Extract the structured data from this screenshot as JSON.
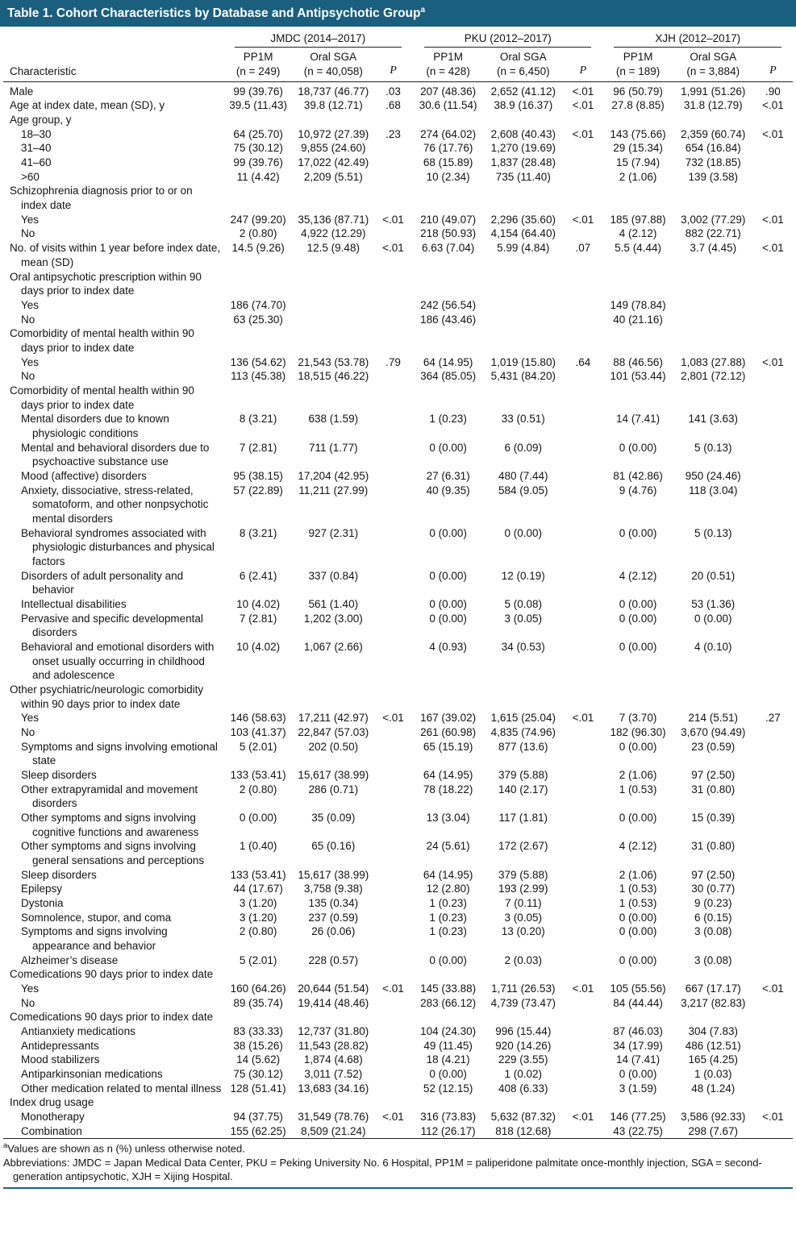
{
  "title": "Table 1. Cohort Characteristics by Database and Antipsychotic Group",
  "title_sup": "a",
  "colors": {
    "accent": "#1a5f7d",
    "rule": "#222222"
  },
  "table": {
    "characteristic_label": "Characteristic",
    "p_label": "P",
    "groups": [
      {
        "name": "JMDC (2014–2017)",
        "pp1m_l1": "PP1M",
        "pp1m_l2": "(n = 249)",
        "sga_l1": "Oral SGA",
        "sga_l2": "(n = 40,058)"
      },
      {
        "name": "PKU (2012–2017)",
        "pp1m_l1": "PP1M",
        "pp1m_l2": "(n = 428)",
        "sga_l1": "Oral SGA",
        "sga_l2": "(n = 6,450)"
      },
      {
        "name": "XJH (2012–2017)",
        "pp1m_l1": "PP1M",
        "pp1m_l2": "(n = 189)",
        "sga_l1": "Oral SGA",
        "sga_l2": "(n = 3,884)"
      }
    ],
    "rows": [
      {
        "t": "d",
        "i": 0,
        "l": "Male",
        "c": [
          "99 (39.76)",
          "18,737 (46.77)",
          ".03",
          "207 (48.36)",
          "2,652 (41.12)",
          "<.01",
          "96 (50.79)",
          "1,991 (51.26)",
          ".90"
        ]
      },
      {
        "t": "d",
        "i": 0,
        "l": "Age at index date, mean (SD), y",
        "c": [
          "39.5 (11.43)",
          "39.8 (12.71)",
          ".68",
          "30.6 (11.54)",
          "38.9 (16.37)",
          "<.01",
          "27.8 (8.85)",
          "31.8 (12.79)",
          "<.01"
        ]
      },
      {
        "t": "s",
        "i": 0,
        "l": "Age group, y"
      },
      {
        "t": "d",
        "i": 1,
        "l": "18–30",
        "c": [
          "64 (25.70)",
          "10,972 (27.39)",
          ".23",
          "274 (64.02)",
          "2,608 (40.43)",
          "<.01",
          "143 (75.66)",
          "2,359 (60.74)",
          "<.01"
        ]
      },
      {
        "t": "d",
        "i": 1,
        "l": "31–40",
        "c": [
          "75 (30.12)",
          "9,855 (24.60)",
          "",
          "76 (17.76)",
          "1,270 (19.69)",
          "",
          "29 (15.34)",
          "654 (16.84)",
          ""
        ]
      },
      {
        "t": "d",
        "i": 1,
        "l": "41–60",
        "c": [
          "99 (39.76)",
          "17,022 (42.49)",
          "",
          "68 (15.89)",
          "1,837 (28.48)",
          "",
          "15 (7.94)",
          "732 (18.85)",
          ""
        ]
      },
      {
        "t": "d",
        "i": 1,
        "l": ">60",
        "c": [
          "11 (4.42)",
          "2,209 (5.51)",
          "",
          "10 (2.34)",
          "735 (11.40)",
          "",
          "2 (1.06)",
          "139 (3.58)",
          ""
        ]
      },
      {
        "t": "s",
        "i": 0,
        "l": "Schizophrenia diagnosis prior to or on index date"
      },
      {
        "t": "d",
        "i": 1,
        "l": "Yes",
        "c": [
          "247 (99.20)",
          "35,136 (87.71)",
          "<.01",
          "210 (49.07)",
          "2,296 (35.60)",
          "<.01",
          "185 (97.88)",
          "3,002 (77.29)",
          "<.01"
        ]
      },
      {
        "t": "d",
        "i": 1,
        "l": "No",
        "c": [
          "2 (0.80)",
          "4,922 (12.29)",
          "",
          "218 (50.93)",
          "4,154 (64.40)",
          "",
          "4 (2.12)",
          "882 (22.71)",
          ""
        ]
      },
      {
        "t": "d",
        "i": 0,
        "l": "No. of visits within 1 year before index date, mean (SD)",
        "c": [
          "14.5 (9.26)",
          "12.5 (9.48)",
          "<.01",
          "6.63 (7.04)",
          "5.99 (4.84)",
          ".07",
          "5.5 (4.44)",
          "3.7 (4.45)",
          "<.01"
        ]
      },
      {
        "t": "s",
        "i": 0,
        "l": "Oral antipsychotic prescription within 90 days prior to index date"
      },
      {
        "t": "d",
        "i": 1,
        "l": "Yes",
        "c": [
          "186 (74.70)",
          "",
          "",
          "242 (56.54)",
          "",
          "",
          "149 (78.84)",
          "",
          ""
        ]
      },
      {
        "t": "d",
        "i": 1,
        "l": "No",
        "c": [
          "63 (25.30)",
          "",
          "",
          "186 (43.46)",
          "",
          "",
          "40 (21.16)",
          "",
          ""
        ]
      },
      {
        "t": "s",
        "i": 0,
        "l": "Comorbidity of mental health within 90 days prior to index date"
      },
      {
        "t": "d",
        "i": 1,
        "l": "Yes",
        "c": [
          "136 (54.62)",
          "21,543 (53.78)",
          ".79",
          "64 (14.95)",
          "1,019 (15.80)",
          ".64",
          "88 (46.56)",
          "1,083 (27.88)",
          "<.01"
        ]
      },
      {
        "t": "d",
        "i": 1,
        "l": "No",
        "c": [
          "113 (45.38)",
          "18,515 (46.22)",
          "",
          "364 (85.05)",
          "5,431 (84.20)",
          "",
          "101 (53.44)",
          "2,801 (72.12)",
          ""
        ]
      },
      {
        "t": "s",
        "i": 0,
        "l": "Comorbidity of mental health within 90 days prior to index date"
      },
      {
        "t": "d",
        "i": 1,
        "l": "Mental disorders due to known physiologic conditions",
        "c": [
          "8 (3.21)",
          "638 (1.59)",
          "",
          "1 (0.23)",
          "33 (0.51)",
          "",
          "14 (7.41)",
          "141 (3.63)",
          ""
        ]
      },
      {
        "t": "d",
        "i": 1,
        "l": "Mental and behavioral disorders due to psychoactive substance use",
        "c": [
          "7 (2.81)",
          "711 (1.77)",
          "",
          "0 (0.00)",
          "6 (0.09)",
          "",
          "0 (0.00)",
          "5 (0.13)",
          ""
        ]
      },
      {
        "t": "d",
        "i": 1,
        "l": "Mood (affective) disorders",
        "c": [
          "95 (38.15)",
          "17,204 (42.95)",
          "",
          "27 (6.31)",
          "480 (7.44)",
          "",
          "81 (42.86)",
          "950 (24.46)",
          ""
        ]
      },
      {
        "t": "d",
        "i": 1,
        "l": "Anxiety, dissociative, stress-related, somatoform, and other nonpsychotic mental disorders",
        "c": [
          "57 (22.89)",
          "11,211 (27.99)",
          "",
          "40 (9.35)",
          "584 (9.05)",
          "",
          "9 (4.76)",
          "118 (3.04)",
          ""
        ]
      },
      {
        "t": "d",
        "i": 1,
        "l": "Behavioral syndromes associated with physiologic disturbances and physical factors",
        "c": [
          "8 (3.21)",
          "927 (2.31)",
          "",
          "0 (0.00)",
          "0 (0.00)",
          "",
          "0 (0.00)",
          "5 (0.13)",
          ""
        ]
      },
      {
        "t": "d",
        "i": 1,
        "l": "Disorders of adult personality and behavior",
        "c": [
          "6 (2.41)",
          "337 (0.84)",
          "",
          "0 (0.00)",
          "12 (0.19)",
          "",
          "4 (2.12)",
          "20 (0.51)",
          ""
        ]
      },
      {
        "t": "d",
        "i": 1,
        "l": "Intellectual disabilities",
        "c": [
          "10 (4.02)",
          "561 (1.40)",
          "",
          "0 (0.00)",
          "5 (0.08)",
          "",
          "0 (0.00)",
          "53 (1.36)",
          ""
        ]
      },
      {
        "t": "d",
        "i": 1,
        "l": "Pervasive and specific developmental disorders",
        "c": [
          "7 (2.81)",
          "1,202 (3.00)",
          "",
          "0 (0.00)",
          "3 (0.05)",
          "",
          "0 (0.00)",
          "0 (0.00)",
          ""
        ]
      },
      {
        "t": "d",
        "i": 1,
        "l": "Behavioral and emotional disorders with onset usually occurring in childhood and adolescence",
        "c": [
          "10 (4.02)",
          "1,067 (2.66)",
          "",
          "4 (0.93)",
          "34 (0.53)",
          "",
          "0 (0.00)",
          "4 (0.10)",
          ""
        ]
      },
      {
        "t": "s",
        "i": 0,
        "l": "Other psychiatric/neurologic comorbidity within 90 days prior to index date"
      },
      {
        "t": "d",
        "i": 1,
        "l": "Yes",
        "c": [
          "146 (58.63)",
          "17,211 (42.97)",
          "<.01",
          "167 (39.02)",
          "1,615 (25.04)",
          "<.01",
          "7 (3.70)",
          "214 (5.51)",
          ".27"
        ]
      },
      {
        "t": "d",
        "i": 1,
        "l": "No",
        "c": [
          "103 (41.37)",
          "22,847 (57.03)",
          "",
          "261 (60.98)",
          "4,835 (74.96)",
          "",
          "182 (96.30)",
          "3,670 (94.49)",
          ""
        ]
      },
      {
        "t": "d",
        "i": 1,
        "l": "Symptoms and signs involving emotional state",
        "c": [
          "5 (2.01)",
          "202 (0.50)",
          "",
          "65 (15.19)",
          "877 (13.6)",
          "",
          "0 (0.00)",
          "23 (0.59)",
          ""
        ]
      },
      {
        "t": "d",
        "i": 1,
        "l": "Sleep disorders",
        "c": [
          "133 (53.41)",
          "15,617 (38.99)",
          "",
          "64 (14.95)",
          "379 (5.88)",
          "",
          "2 (1.06)",
          "97 (2.50)",
          ""
        ]
      },
      {
        "t": "d",
        "i": 1,
        "l": "Other extrapyramidal and movement disorders",
        "c": [
          "2 (0.80)",
          "286 (0.71)",
          "",
          "78 (18.22)",
          "140 (2.17)",
          "",
          "1 (0.53)",
          "31 (0.80)",
          ""
        ]
      },
      {
        "t": "d",
        "i": 1,
        "l": "Other symptoms and signs involving cognitive functions and awareness",
        "c": [
          "0 (0.00)",
          "35 (0.09)",
          "",
          "13 (3.04)",
          "117 (1.81)",
          "",
          "0 (0.00)",
          "15 (0.39)",
          ""
        ]
      },
      {
        "t": "d",
        "i": 1,
        "l": "Other symptoms and signs involving general sensations and perceptions",
        "c": [
          "1 (0.40)",
          "65 (0.16)",
          "",
          "24 (5.61)",
          "172 (2.67)",
          "",
          "4 (2.12)",
          "31 (0.80)",
          ""
        ]
      },
      {
        "t": "d",
        "i": 1,
        "l": "Sleep disorders",
        "c": [
          "133 (53.41)",
          "15,617 (38.99)",
          "",
          "64 (14.95)",
          "379 (5.88)",
          "",
          "2 (1.06)",
          "97 (2.50)",
          ""
        ]
      },
      {
        "t": "d",
        "i": 1,
        "l": "Epilepsy",
        "c": [
          "44 (17.67)",
          "3,758 (9.38)",
          "",
          "12 (2.80)",
          "193 (2.99)",
          "",
          "1 (0.53)",
          "30 (0.77)",
          ""
        ]
      },
      {
        "t": "d",
        "i": 1,
        "l": "Dystonia",
        "c": [
          "3 (1.20)",
          "135 (0.34)",
          "",
          "1 (0.23)",
          "7 (0.11)",
          "",
          "1 (0.53)",
          "9 (0.23)",
          ""
        ]
      },
      {
        "t": "d",
        "i": 1,
        "l": "Somnolence, stupor, and coma",
        "c": [
          "3 (1.20)",
          "237 (0.59)",
          "",
          "1 (0.23)",
          "3 (0.05)",
          "",
          "0 (0.00)",
          "6 (0.15)",
          ""
        ]
      },
      {
        "t": "d",
        "i": 1,
        "l": "Symptoms and signs involving appearance and behavior",
        "c": [
          "2 (0.80)",
          "26 (0.06)",
          "",
          "1 (0.23)",
          "13 (0.20)",
          "",
          "0 (0.00)",
          "3 (0.08)",
          ""
        ]
      },
      {
        "t": "d",
        "i": 1,
        "l": "Alzheimer’s disease",
        "c": [
          "5 (2.01)",
          "228 (0.57)",
          "",
          "0 (0.00)",
          "2 (0.03)",
          "",
          "0 (0.00)",
          "3 (0.08)",
          ""
        ]
      },
      {
        "t": "s",
        "i": 0,
        "l": "Comedications 90 days prior to index date"
      },
      {
        "t": "d",
        "i": 1,
        "l": "Yes",
        "c": [
          "160 (64.26)",
          "20,644 (51.54)",
          "<.01",
          "145 (33.88)",
          "1,711 (26.53)",
          "<.01",
          "105 (55.56)",
          "667 (17.17)",
          "<.01"
        ]
      },
      {
        "t": "d",
        "i": 1,
        "l": "No",
        "c": [
          "89 (35.74)",
          "19,414 (48.46)",
          "",
          "283 (66.12)",
          "4,739 (73.47)",
          "",
          "84 (44.44)",
          "3,217 (82.83)",
          ""
        ]
      },
      {
        "t": "s",
        "i": 0,
        "l": "Comedications 90 days prior to index date"
      },
      {
        "t": "d",
        "i": 1,
        "l": "Antianxiety medications",
        "c": [
          "83 (33.33)",
          "12,737 (31.80)",
          "",
          "104 (24.30)",
          "996 (15.44)",
          "",
          "87 (46.03)",
          "304 (7.83)",
          ""
        ]
      },
      {
        "t": "d",
        "i": 1,
        "l": "Antidepressants",
        "c": [
          "38 (15.26)",
          "11,543 (28.82)",
          "",
          "49 (11.45)",
          "920 (14.26)",
          "",
          "34 (17.99)",
          "486 (12.51)",
          ""
        ]
      },
      {
        "t": "d",
        "i": 1,
        "l": "Mood stabilizers",
        "c": [
          "14 (5.62)",
          "1,874 (4.68)",
          "",
          "18 (4.21)",
          "229 (3.55)",
          "",
          "14 (7.41)",
          "165 (4.25)",
          ""
        ]
      },
      {
        "t": "d",
        "i": 1,
        "l": "Antiparkinsonian medications",
        "c": [
          "75 (30.12)",
          "3,011 (7.52)",
          "",
          "0 (0.00)",
          "1 (0.02)",
          "",
          "0 (0.00)",
          "1 (0.03)",
          ""
        ]
      },
      {
        "t": "d",
        "i": 1,
        "l": "Other medication related to mental illness",
        "c": [
          "128 (51.41)",
          "13,683 (34.16)",
          "",
          "52 (12.15)",
          "408 (6.33)",
          "",
          "3 (1.59)",
          "48 (1.24)",
          ""
        ]
      },
      {
        "t": "s",
        "i": 0,
        "l": "Index drug usage"
      },
      {
        "t": "d",
        "i": 1,
        "l": "Monotherapy",
        "c": [
          "94 (37.75)",
          "31,549 (78.76)",
          "<.01",
          "316 (73.83)",
          "5,632 (87.32)",
          "<.01",
          "146 (77.25)",
          "3,586 (92.33)",
          "<.01"
        ]
      },
      {
        "t": "d",
        "i": 1,
        "l": "Combination",
        "c": [
          "155 (62.25)",
          "8,509 (21.24)",
          "",
          "112 (26.17)",
          "818 (12.68)",
          "",
          "43 (22.75)",
          "298 (7.67)",
          ""
        ]
      }
    ]
  },
  "footnotes": {
    "marker": "a",
    "values_note": "Values are shown as n (%) unless otherwise noted.",
    "abbreviations": "Abbreviations: JMDC = Japan Medical Data Center, PKU = Peking University No. 6 Hospital, PP1M = paliperidone palmitate once-monthly injection, SGA = second-generation antipsychotic, XJH = Xijing Hospital."
  }
}
